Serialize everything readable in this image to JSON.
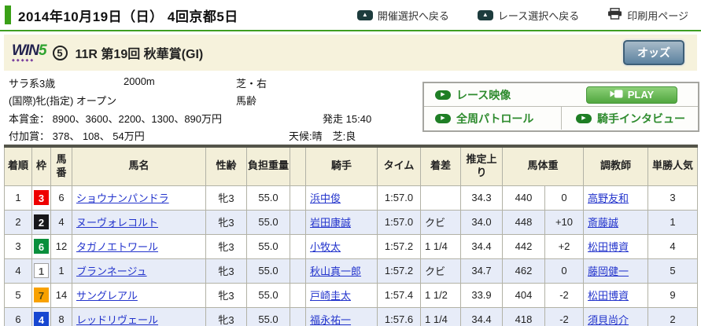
{
  "header": {
    "title": "2014年10月19日（日） 4回京都5日",
    "back_meeting": "開催選択へ戻る",
    "back_race": "レース選択へ戻る",
    "print_page": "印刷用ページ"
  },
  "race_bar": {
    "win5_logo_win": "WIN",
    "win5_logo_five": "5",
    "win5_number": "5",
    "race_title": "11R 第19回 秋華賞(GI)",
    "odds_button": "オッズ"
  },
  "race_info": {
    "race_class": "サラ系3歳",
    "distance": "2000m",
    "course": "芝・右",
    "conditions": "(国際)牝(指定) オープン",
    "weight_rule": "馬齢",
    "prize_label": "本賞金：",
    "prize": "8900、3600、2200、1300、890万円",
    "start_label": "発走",
    "start_time": "15:40",
    "extra_prize_label": "付加賞：",
    "extra_prize": "378、 108、 54万円",
    "weather_track": "天候:晴　芝:良"
  },
  "media": {
    "race_video": "レース映像",
    "play_button": "PLAY",
    "patrol_video": "全周パトロール",
    "jockey_interview": "騎手インタビュー"
  },
  "icons": {
    "back_icon_glyph": "▲",
    "video_pill_glyph": "▶",
    "win5_dots": "◆◆◆◆◆"
  },
  "results": {
    "headers": {
      "rank": "着順",
      "waku": "枠",
      "horse_no": "馬番",
      "horse": "馬名",
      "sex_age": "性齢",
      "weight": "負担重量",
      "blinker": "",
      "jockey": "騎手",
      "time": "タイム",
      "margin": "着差",
      "last3f": "推定上り",
      "horse_weight": "馬体重",
      "trainer": "調教師",
      "popularity": "単勝人気"
    },
    "rows": [
      {
        "rank": "1",
        "waku": "3",
        "horse_no": "6",
        "horse": "ショウナンパンドラ",
        "sex_age": "牝3",
        "weight": "55.0",
        "jockey": "浜中俊",
        "time": "1:57.0",
        "margin": "",
        "last3f": "34.3",
        "horse_weight": "440",
        "weight_diff": "0",
        "trainer": "高野友和",
        "popularity": "3"
      },
      {
        "rank": "2",
        "waku": "2",
        "horse_no": "4",
        "horse": "ヌーヴォレコルト",
        "sex_age": "牝3",
        "weight": "55.0",
        "jockey": "岩田康誠",
        "time": "1:57.0",
        "margin": "クビ",
        "last3f": "34.0",
        "horse_weight": "448",
        "weight_diff": "+10",
        "trainer": "斎藤誠",
        "popularity": "1"
      },
      {
        "rank": "3",
        "waku": "6",
        "horse_no": "12",
        "horse": "タガノエトワール",
        "sex_age": "牝3",
        "weight": "55.0",
        "jockey": "小牧太",
        "time": "1:57.2",
        "margin": "1 1/4",
        "last3f": "34.4",
        "horse_weight": "442",
        "weight_diff": "+2",
        "trainer": "松田博資",
        "popularity": "4"
      },
      {
        "rank": "4",
        "waku": "1",
        "horse_no": "1",
        "horse": "ブランネージュ",
        "sex_age": "牝3",
        "weight": "55.0",
        "jockey": "秋山真一郎",
        "time": "1:57.2",
        "margin": "クビ",
        "last3f": "34.7",
        "horse_weight": "462",
        "weight_diff": "0",
        "trainer": "藤岡健一",
        "popularity": "5"
      },
      {
        "rank": "5",
        "waku": "7",
        "horse_no": "14",
        "horse": "サングレアル",
        "sex_age": "牝3",
        "weight": "55.0",
        "jockey": "戸崎圭太",
        "time": "1:57.4",
        "margin": "1 1/2",
        "last3f": "33.9",
        "horse_weight": "404",
        "weight_diff": "-2",
        "trainer": "松田博資",
        "popularity": "9"
      },
      {
        "rank": "6",
        "waku": "4",
        "horse_no": "8",
        "horse": "レッドリヴェール",
        "sex_age": "牝3",
        "weight": "55.0",
        "jockey": "福永祐一",
        "time": "1:57.6",
        "margin": "1 1/4",
        "last3f": "34.4",
        "horse_weight": "418",
        "weight_diff": "-2",
        "trainer": "須貝尚介",
        "popularity": "2"
      }
    ],
    "waku_colors": {
      "1": {
        "bg": "#ffffff",
        "fg": "#555555",
        "border": "#a0a0a0"
      },
      "2": {
        "bg": "#17171a",
        "fg": "#ffffff",
        "border": "#17171a"
      },
      "3": {
        "bg": "#ee0000",
        "fg": "#ffffff",
        "border": "#ee0000"
      },
      "4": {
        "bg": "#1747d1",
        "fg": "#ffffff",
        "border": "#1747d1"
      },
      "6": {
        "bg": "#0a8f3c",
        "fg": "#ffffff",
        "border": "#0a8f3c"
      },
      "7": {
        "bg": "#f8a100",
        "fg": "#5a4a10",
        "border": "#f8a100"
      }
    }
  },
  "colors": {
    "accent_green": "#3f9e22",
    "link_blue": "#2233cc",
    "bar_cream": "#f6f2dc",
    "header_cream": "#f3efd9",
    "row_alt_blue": "#e7ecf8"
  }
}
